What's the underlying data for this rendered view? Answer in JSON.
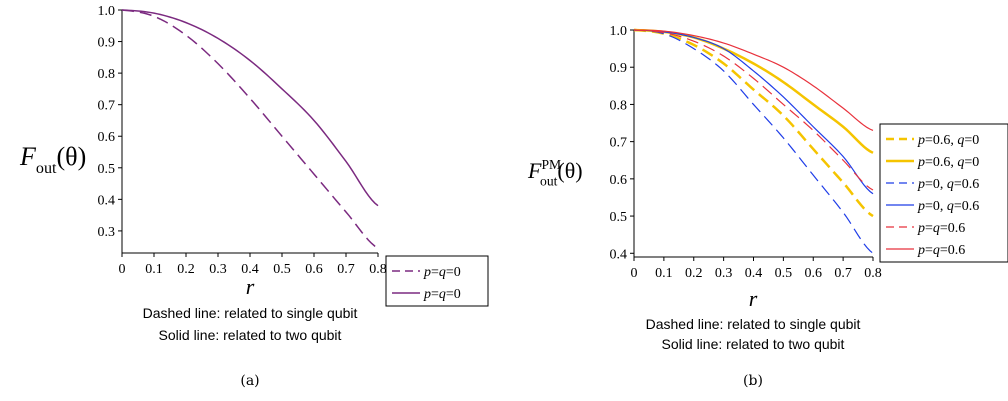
{
  "chart_data": [
    {
      "type": "line",
      "panel": "(a)",
      "xlabel": "r",
      "ylabel": {
        "main": "F",
        "sub": "out",
        "sup": "",
        "arg": "(θ)"
      },
      "xlim": [
        0,
        0.8
      ],
      "ylim": [
        0.23,
        1.0
      ],
      "xticks": [
        "0",
        "0.1",
        "0.2",
        "0.3",
        "0.4",
        "0.5",
        "0.6",
        "0.7",
        "0.8"
      ],
      "yticks": [
        "0.3",
        "0.4",
        "0.5",
        "0.6",
        "0.7",
        "0.8",
        "0.9",
        "1.0"
      ],
      "grid": false,
      "legend_position": "right",
      "notes": [
        "Dashed line: related to single qubit",
        "Solid line: related to two qubit"
      ],
      "series": [
        {
          "name": "p=q=0",
          "var1": "p",
          "eq1": "=",
          "var2": "q",
          "eq2": "=0",
          "color": "#7b2a80",
          "dash": "dashed",
          "width": 1.5,
          "x": [
            0,
            0.1,
            0.2,
            0.3,
            0.4,
            0.5,
            0.6,
            0.7,
            0.8
          ],
          "y": [
            1.0,
            0.98,
            0.92,
            0.83,
            0.72,
            0.6,
            0.48,
            0.36,
            0.245
          ]
        },
        {
          "name": "p=q=0",
          "var1": "p",
          "eq1": "=",
          "var2": "q",
          "eq2": "=0",
          "color": "#7b2a80",
          "dash": "solid",
          "width": 1.5,
          "x": [
            0,
            0.1,
            0.2,
            0.3,
            0.4,
            0.5,
            0.6,
            0.7,
            0.8
          ],
          "y": [
            1.0,
            0.99,
            0.96,
            0.91,
            0.84,
            0.75,
            0.65,
            0.52,
            0.38
          ]
        }
      ]
    },
    {
      "type": "line",
      "panel": "(b)",
      "xlabel": "r",
      "ylabel": {
        "main": "F",
        "sub": "out",
        "sup": "PM",
        "arg": "(θ)"
      },
      "xlim": [
        0,
        0.8
      ],
      "ylim": [
        0.39,
        1.0
      ],
      "xticks": [
        "0",
        "0.1",
        "0.2",
        "0.3",
        "0.4",
        "0.5",
        "0.6",
        "0.7",
        "0.8"
      ],
      "yticks": [
        "0.4",
        "0.5",
        "0.6",
        "0.7",
        "0.8",
        "0.9",
        "1.0"
      ],
      "grid": false,
      "legend_position": "right",
      "notes": [
        "Dashed line: related to single qubit",
        "Solid line: related to two qubit"
      ],
      "series": [
        {
          "name": "p=0.6, q=0",
          "var1": "p",
          "eq1": "=0.6, ",
          "var2": "q",
          "eq2": "=0",
          "color": "#f5c400",
          "dash": "dashed",
          "width": 2.5,
          "x": [
            0,
            0.1,
            0.2,
            0.3,
            0.4,
            0.5,
            0.6,
            0.7,
            0.8
          ],
          "y": [
            1.0,
            0.99,
            0.96,
            0.91,
            0.84,
            0.77,
            0.68,
            0.59,
            0.5
          ]
        },
        {
          "name": "p=0.6, q=0",
          "var1": "p",
          "eq1": "=0.6, ",
          "var2": "q",
          "eq2": "=0",
          "color": "#f5c400",
          "dash": "solid",
          "width": 2.5,
          "x": [
            0,
            0.1,
            0.2,
            0.3,
            0.4,
            0.5,
            0.6,
            0.7,
            0.8
          ],
          "y": [
            1.0,
            0.995,
            0.98,
            0.95,
            0.91,
            0.86,
            0.8,
            0.74,
            0.67
          ]
        },
        {
          "name": "p=0, q=0.6",
          "var1": "p",
          "eq1": "=0, ",
          "var2": "q",
          "eq2": "=0.6",
          "color": "#1f3de8",
          "dash": "dashed",
          "width": 1.2,
          "x": [
            0,
            0.1,
            0.2,
            0.3,
            0.4,
            0.5,
            0.6,
            0.7,
            0.8
          ],
          "y": [
            1.0,
            0.99,
            0.95,
            0.89,
            0.8,
            0.71,
            0.61,
            0.51,
            0.4
          ]
        },
        {
          "name": "p=0, q=0.6",
          "var1": "p",
          "eq1": "=0, ",
          "var2": "q",
          "eq2": "=0.6",
          "color": "#1f3de8",
          "dash": "solid",
          "width": 1.2,
          "x": [
            0,
            0.1,
            0.2,
            0.3,
            0.4,
            0.5,
            0.6,
            0.7,
            0.8
          ],
          "y": [
            1.0,
            0.995,
            0.98,
            0.95,
            0.89,
            0.82,
            0.74,
            0.66,
            0.56
          ]
        },
        {
          "name": "p=q=0.6",
          "var1": "p",
          "eq1": "=",
          "var2": "q",
          "eq2": "=0.6",
          "color": "#e8323c",
          "dash": "dashed",
          "width": 1.2,
          "x": [
            0,
            0.1,
            0.2,
            0.3,
            0.4,
            0.5,
            0.6,
            0.7,
            0.8
          ],
          "y": [
            1.0,
            0.993,
            0.97,
            0.93,
            0.87,
            0.8,
            0.73,
            0.65,
            0.57
          ]
        },
        {
          "name": "p=q=0.6",
          "var1": "p",
          "eq1": "=",
          "var2": "q",
          "eq2": "=0.6",
          "color": "#e8323c",
          "dash": "solid",
          "width": 1.2,
          "x": [
            0,
            0.1,
            0.2,
            0.3,
            0.4,
            0.5,
            0.6,
            0.7,
            0.8
          ],
          "y": [
            1.0,
            0.997,
            0.985,
            0.965,
            0.935,
            0.9,
            0.85,
            0.79,
            0.73
          ]
        }
      ]
    }
  ]
}
